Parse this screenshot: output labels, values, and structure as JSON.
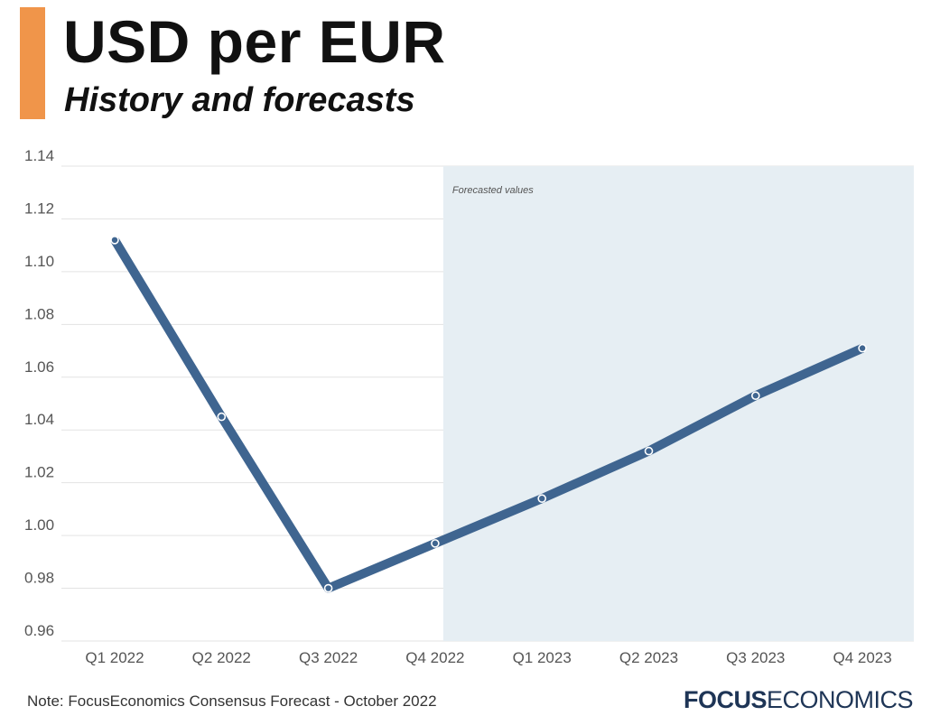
{
  "header": {
    "title": "USD per EUR",
    "subtitle": "History and forecasts"
  },
  "colors": {
    "accent": "#f0954a",
    "line": "#3f6590",
    "forecast_band": "#e6eef3",
    "grid": "#e3e3e3"
  },
  "chart_data": {
    "type": "line",
    "categories": [
      "Q1 2022",
      "Q2 2022",
      "Q3 2022",
      "Q4 2022",
      "Q1 2023",
      "Q2 2023",
      "Q3 2023",
      "Q4 2023"
    ],
    "series": [
      {
        "values": [
          1.112,
          1.045,
          0.98,
          0.997,
          1.014,
          1.032,
          1.053,
          1.071
        ]
      }
    ],
    "ylim": [
      0.96,
      1.14
    ],
    "yticks": [
      0.96,
      0.98,
      1.0,
      1.02,
      1.04,
      1.06,
      1.08,
      1.1,
      1.12,
      1.14
    ],
    "ytick_labels": [
      "0.96",
      "0.98",
      "1.00",
      "1.02",
      "1.04",
      "1.06",
      "1.08",
      "1.10",
      "1.12",
      "1.14"
    ],
    "grid": true,
    "forecast_start_category": "Q4 2022",
    "annotations": [
      {
        "text": "Forecasted values"
      }
    ]
  },
  "footer": {
    "note": "Note: FocusEconomics Consensus Forecast - October 2022",
    "logo_bold": "FOCUS",
    "logo_light": "ECONOMICS"
  }
}
